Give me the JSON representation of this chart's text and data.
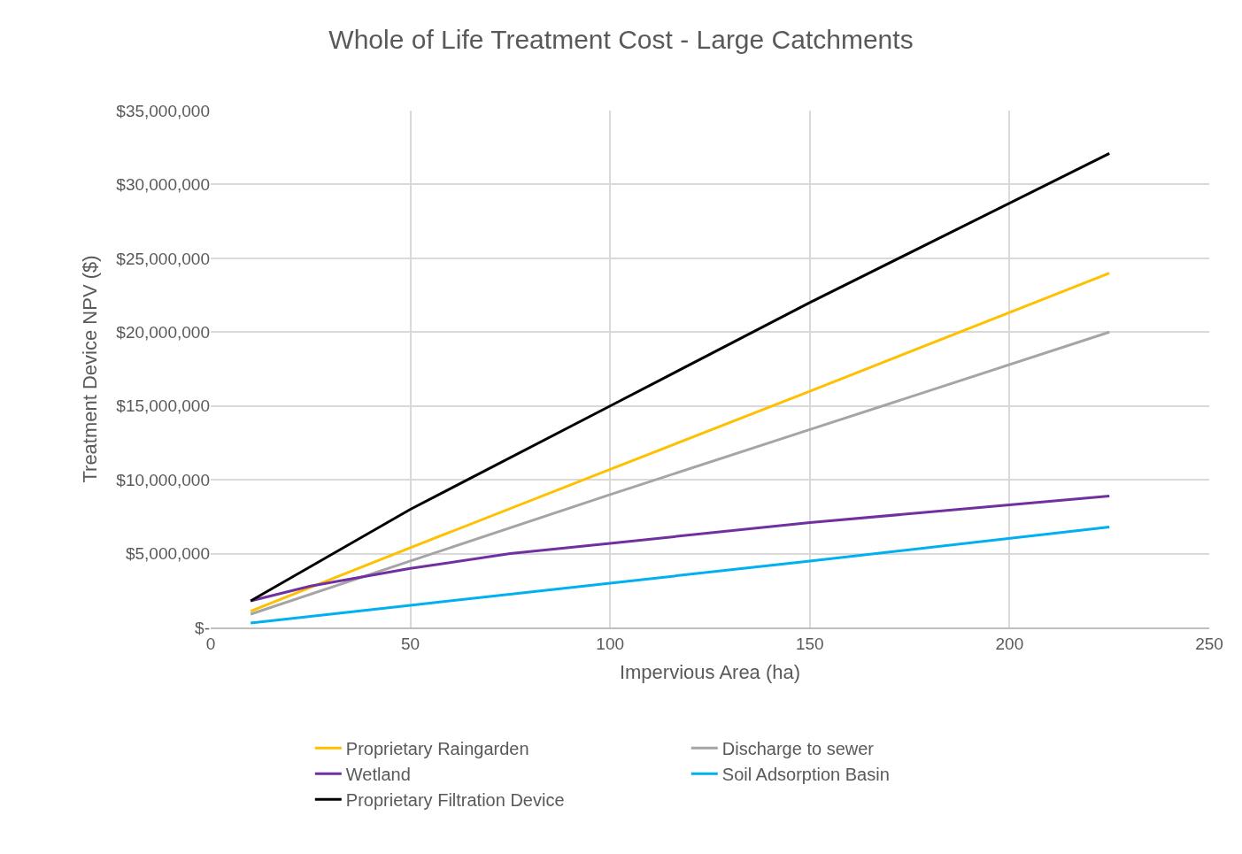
{
  "chart_data": {
    "type": "line",
    "title": "Whole of Life Treatment Cost - Large Catchments",
    "xlabel": "Impervious Area (ha)",
    "ylabel": "Treatment Device NPV ($)",
    "xlim": [
      0,
      250
    ],
    "xticks": [
      0,
      50,
      100,
      150,
      200,
      250
    ],
    "ylim": [
      0,
      35000000
    ],
    "yticks": [
      {
        "value": 0,
        "label": "$-"
      },
      {
        "value": 5000000,
        "label": "$5,000,000"
      },
      {
        "value": 10000000,
        "label": "$10,000,000"
      },
      {
        "value": 15000000,
        "label": "$15,000,000"
      },
      {
        "value": 20000000,
        "label": "$20,000,000"
      },
      {
        "value": 25000000,
        "label": "$25,000,000"
      },
      {
        "value": 30000000,
        "label": "$30,000,000"
      },
      {
        "value": 35000000,
        "label": "$35,000,000"
      }
    ],
    "grid": true,
    "legend": "bottom",
    "marker": "none",
    "line_style": "solid",
    "series": [
      {
        "name": "Proprietary Raingarden",
        "color": "#ffc000",
        "x": [
          10,
          50,
          100,
          150,
          225
        ],
        "values": [
          1100000,
          5400000,
          10700000,
          16000000,
          24000000
        ]
      },
      {
        "name": "Discharge to sewer",
        "color": "#a5a5a5",
        "x": [
          10,
          50,
          100,
          150,
          225
        ],
        "values": [
          900000,
          4500000,
          9000000,
          13400000,
          20000000
        ]
      },
      {
        "name": "Wetland",
        "color": "#7030a0",
        "x": [
          10,
          25,
          50,
          75,
          100,
          150,
          225
        ],
        "values": [
          1800000,
          2800000,
          4000000,
          5000000,
          5700000,
          7100000,
          8900000
        ]
      },
      {
        "name": "Soil Adsorption Basin",
        "color": "#00b0f0",
        "x": [
          10,
          50,
          100,
          150,
          225
        ],
        "values": [
          300000,
          1500000,
          3000000,
          4500000,
          6800000
        ]
      },
      {
        "name": "Proprietary Filtration Device",
        "color": "#000000",
        "x": [
          10,
          50,
          100,
          150,
          225
        ],
        "values": [
          1800000,
          8000000,
          15000000,
          22000000,
          32100000
        ]
      }
    ]
  }
}
